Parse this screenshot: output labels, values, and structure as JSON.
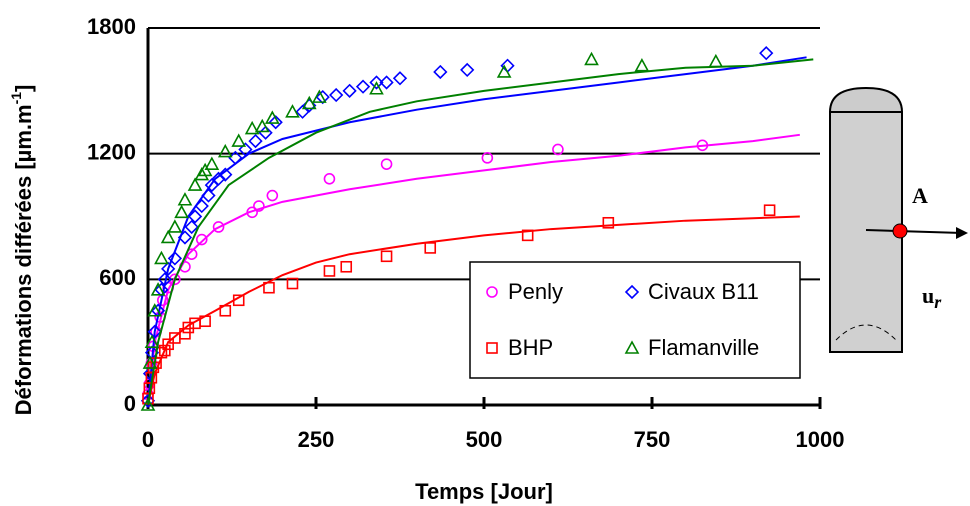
{
  "chart_data": {
    "type": "scatter-line",
    "x_label": "Temps [Jour]",
    "y_label": {
      "text": "Déformations différées [µm.m",
      "sup": "-1",
      "end": "]"
    },
    "xlim": [
      0,
      1000
    ],
    "xticks": [
      0,
      250,
      500,
      750,
      1000
    ],
    "ylim": [
      0,
      1800
    ],
    "yticks": [
      0,
      600,
      1200,
      1800
    ],
    "grid": true,
    "legend": "lower right",
    "series": [
      {
        "name": "Penly",
        "color": "#ff00ff",
        "marker": "circle",
        "x": [
          0,
          2,
          5,
          8,
          12,
          18,
          22,
          30,
          40,
          55,
          65,
          80,
          105,
          155,
          165,
          185,
          270,
          355,
          505,
          610,
          825
        ],
        "y": [
          50,
          100,
          200,
          280,
          350,
          420,
          500,
          560,
          600,
          660,
          720,
          790,
          850,
          920,
          950,
          1000,
          1080,
          1150,
          1180,
          1220,
          1240
        ],
        "model": {
          "x": [
            0,
            10,
            30,
            60,
            100,
            150,
            200,
            300,
            400,
            500,
            600,
            700,
            800,
            900,
            970
          ],
          "y": [
            0,
            300,
            550,
            720,
            840,
            920,
            970,
            1030,
            1080,
            1120,
            1160,
            1190,
            1230,
            1260,
            1290
          ]
        }
      },
      {
        "name": "Civaux B11",
        "color": "#0000ff",
        "marker": "diamond",
        "x": [
          0,
          3,
          6,
          10,
          15,
          20,
          25,
          30,
          40,
          55,
          65,
          70,
          80,
          90,
          95,
          105,
          115,
          130,
          145,
          160,
          175,
          190,
          230,
          240,
          260,
          280,
          300,
          320,
          340,
          355,
          375,
          435,
          475,
          535,
          920
        ],
        "y": [
          20,
          150,
          250,
          350,
          450,
          550,
          600,
          650,
          700,
          800,
          850,
          900,
          950,
          1000,
          1050,
          1080,
          1100,
          1180,
          1220,
          1260,
          1300,
          1350,
          1400,
          1430,
          1470,
          1480,
          1500,
          1520,
          1540,
          1540,
          1560,
          1590,
          1600,
          1620,
          1680
        ],
        "model": {
          "x": [
            0,
            10,
            30,
            60,
            100,
            150,
            200,
            250,
            300,
            400,
            500,
            600,
            700,
            800,
            900,
            980
          ],
          "y": [
            0,
            350,
            650,
            900,
            1080,
            1200,
            1270,
            1310,
            1350,
            1410,
            1460,
            1500,
            1540,
            1580,
            1620,
            1660
          ]
        }
      },
      {
        "name": "BHP",
        "color": "#ff0000",
        "marker": "square",
        "x": [
          0,
          2,
          5,
          8,
          12,
          20,
          25,
          30,
          40,
          55,
          60,
          70,
          85,
          115,
          135,
          180,
          215,
          270,
          295,
          355,
          420,
          565,
          685,
          925
        ],
        "y": [
          30,
          80,
          130,
          180,
          200,
          250,
          260,
          290,
          320,
          340,
          370,
          390,
          400,
          450,
          500,
          560,
          580,
          640,
          660,
          710,
          750,
          810,
          870,
          930
        ],
        "model": {
          "x": [
            0,
            10,
            30,
            60,
            100,
            150,
            200,
            250,
            300,
            400,
            500,
            600,
            700,
            800,
            970
          ],
          "y": [
            0,
            150,
            300,
            380,
            450,
            540,
            620,
            680,
            720,
            770,
            810,
            840,
            860,
            880,
            900
          ]
        }
      },
      {
        "name": "Flamanville",
        "color": "#008000",
        "marker": "triangle",
        "x": [
          0,
          3,
          6,
          10,
          15,
          20,
          30,
          40,
          50,
          55,
          70,
          80,
          85,
          95,
          115,
          135,
          155,
          170,
          185,
          215,
          240,
          255,
          340,
          530,
          660,
          735,
          845
        ],
        "y": [
          0,
          200,
          300,
          450,
          550,
          700,
          800,
          850,
          920,
          980,
          1050,
          1100,
          1120,
          1150,
          1210,
          1260,
          1320,
          1330,
          1370,
          1400,
          1440,
          1470,
          1510,
          1590,
          1650,
          1620,
          1640
        ],
        "model": {
          "x": [
            0,
            15,
            40,
            75,
            120,
            180,
            250,
            330,
            400,
            500,
            600,
            700,
            800,
            900,
            990
          ],
          "y": [
            0,
            300,
            600,
            850,
            1050,
            1180,
            1300,
            1400,
            1450,
            1500,
            1540,
            1580,
            1610,
            1620,
            1650
          ]
        }
      }
    ]
  },
  "diagram": {
    "point_label": "A",
    "arrow_label": "u",
    "arrow_subscript": "r"
  }
}
